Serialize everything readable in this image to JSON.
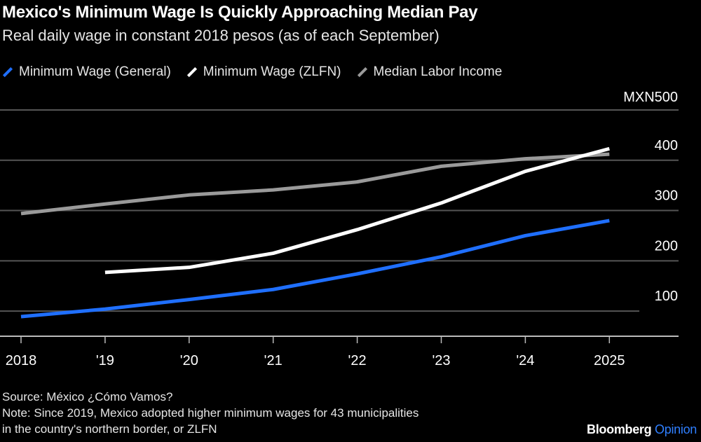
{
  "title": "Mexico's Minimum Wage Is Quickly Approaching Median Pay",
  "subtitle": "Real daily wage in constant 2018 pesos (as of each September)",
  "source": "Source: México ¿Cómo Vamos?",
  "note_line1": "Note: Since 2019, Mexico adopted higher minimum wages for 43 municipalities",
  "note_line2": "in the country's northern border, or ZLFN",
  "brand": {
    "name": "Bloomberg",
    "section": "Opinion"
  },
  "chart_data": {
    "type": "line",
    "title": "Mexico's Minimum Wage Is Quickly Approaching Median Pay",
    "ylabel": "",
    "xlabel": "",
    "x": [
      2018,
      2019,
      2020,
      2021,
      2022,
      2023,
      2024,
      2025
    ],
    "x_tick_labels": [
      "2018",
      "'19",
      "'20",
      "'21",
      "'22",
      "'23",
      "'24",
      "2025"
    ],
    "y_ticks": [
      100,
      200,
      300,
      400,
      500
    ],
    "y_tick_labels": [
      "100",
      "200",
      "300",
      "400",
      "MXN500"
    ],
    "ylim": [
      50,
      500
    ],
    "grid": true,
    "y_axis_side": "right",
    "legend_position": "top-left",
    "series": [
      {
        "name": "Minimum Wage (General)",
        "color": "#1f6fff",
        "values": [
          89,
          104,
          123,
          143,
          174,
          208,
          250,
          280
        ]
      },
      {
        "name": "Minimum Wage (ZLFN)",
        "color": "#ffffff",
        "values": [
          null,
          177,
          187,
          215,
          262,
          315,
          378,
          423
        ]
      },
      {
        "name": "Median Labor Income",
        "color": "#9a9a9a",
        "values": [
          294,
          313,
          331,
          341,
          357,
          388,
          403,
          412
        ]
      }
    ]
  }
}
